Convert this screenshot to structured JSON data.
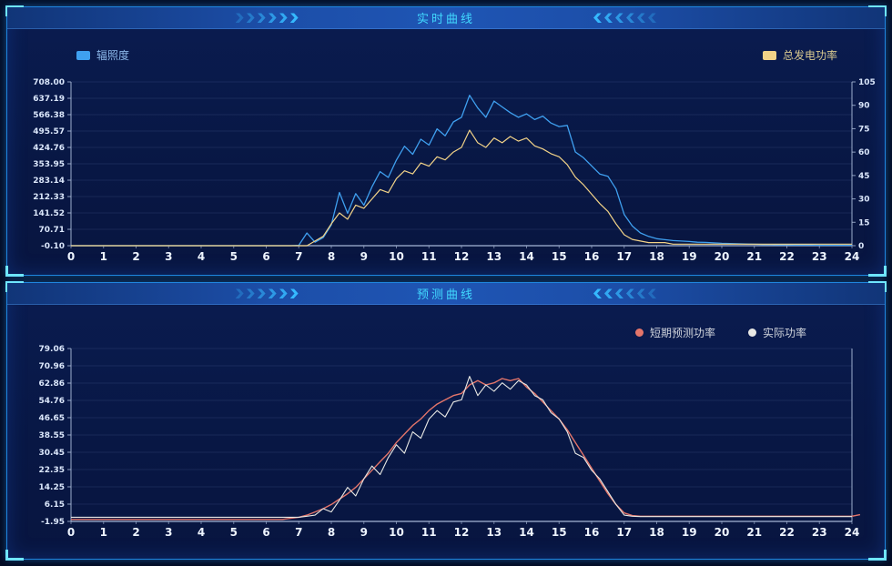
{
  "colors": {
    "background": "#04102c",
    "panel_bg": "#081744",
    "panel_border": "#1f86e0",
    "corner_accent": "#6fe6ff",
    "header_bg": "#1c4ea8",
    "title_text": "#41d9ff",
    "axis_line": "#aebfdd",
    "grid_line": "rgba(170,200,255,0.10)",
    "tick_text": "#dbe7fb",
    "x_tick_text": "#eef5ff",
    "irradiance": "#3fa0f0",
    "total_power": "#f2d388",
    "forecast_power": "#e4756a",
    "actual_power": "#e8e8e4"
  },
  "icons": {
    "header_left_arrows": "chevrons-right",
    "header_right_arrows": "chevrons-left",
    "legend_square": "square-swatch",
    "legend_dot": "circle-swatch"
  },
  "realtime": {
    "title": "实时曲线",
    "legend": [
      {
        "label": "辐照度",
        "color": "#3fa0f0",
        "shape": "square"
      },
      {
        "label": "总发电功率",
        "color": "#f2d388",
        "shape": "square"
      }
    ]
  },
  "forecast": {
    "title": "预测曲线",
    "legend": [
      {
        "label": "短期预测功率",
        "color": "#e4756a",
        "shape": "circle"
      },
      {
        "label": "实际功率",
        "color": "#e8e8e4",
        "shape": "circle"
      }
    ]
  },
  "chart_data": [
    {
      "type": "line",
      "title": "实时曲线",
      "x_start": 0,
      "x_step": 0.25,
      "xlim": [
        0,
        24
      ],
      "x_ticks": [
        "0",
        "1",
        "2",
        "3",
        "4",
        "5",
        "6",
        "7",
        "8",
        "9",
        "10",
        "11",
        "12",
        "13",
        "14",
        "15",
        "16",
        "17",
        "18",
        "19",
        "20",
        "21",
        "22",
        "23",
        "24"
      ],
      "left_ticks": [
        "708.00",
        "637.19",
        "566.38",
        "495.57",
        "424.76",
        "353.95",
        "283.14",
        "212.33",
        "141.52",
        "70.71",
        "-0.10"
      ],
      "left_ylim": [
        -0.1,
        708.0
      ],
      "right_ticks": [
        "105",
        "90",
        "75",
        "60",
        "45",
        "30",
        "15",
        "0"
      ],
      "right_ylim": [
        0,
        105
      ],
      "legend_position": "top-corners",
      "grid": true,
      "series": [
        {
          "id": "irradiance",
          "name": "辐照度",
          "axis": "left",
          "color": "#3fa0f0",
          "width": 1.3,
          "values": [
            0,
            0,
            0,
            0,
            0,
            0,
            0,
            0,
            0,
            0,
            0,
            0,
            0,
            0,
            0,
            0,
            0,
            0,
            0,
            0,
            0,
            0,
            0,
            0,
            0,
            0,
            0,
            0,
            2,
            55,
            15,
            35,
            90,
            230,
            140,
            225,
            175,
            255,
            320,
            295,
            370,
            430,
            395,
            460,
            435,
            505,
            475,
            535,
            555,
            650,
            595,
            555,
            625,
            600,
            575,
            555,
            570,
            545,
            560,
            530,
            515,
            520,
            405,
            380,
            345,
            310,
            300,
            245,
            135,
            85,
            55,
            40,
            30,
            26,
            22,
            20,
            18,
            15,
            14,
            12,
            10,
            9,
            8,
            7,
            6,
            5,
            5,
            4,
            4,
            3,
            3,
            3,
            2,
            2,
            2,
            2,
            2
          ]
        },
        {
          "id": "total-power",
          "name": "总发电功率",
          "axis": "right",
          "color": "#f2d388",
          "width": 1.2,
          "values": [
            0,
            0,
            0,
            0,
            0,
            0,
            0,
            0,
            0,
            0,
            0,
            0,
            0,
            0,
            0,
            0,
            0,
            0,
            0,
            0,
            0,
            0,
            0,
            0,
            0,
            0,
            0,
            0,
            0,
            0,
            3,
            6,
            14,
            21,
            17,
            26,
            24,
            30,
            36,
            34,
            43,
            48,
            46,
            53,
            51,
            57,
            55,
            60,
            63,
            74,
            66,
            63,
            69,
            66,
            70,
            67,
            69,
            64,
            62,
            59,
            57,
            52,
            44,
            39,
            33,
            27,
            22,
            14,
            7,
            4,
            3,
            2,
            2,
            2,
            1,
            1,
            1,
            1,
            1,
            1,
            1,
            1,
            1,
            1,
            1,
            1,
            1,
            1,
            1,
            1,
            1,
            1,
            1,
            1,
            1,
            1,
            1
          ]
        }
      ]
    },
    {
      "type": "line",
      "title": "预测曲线",
      "x_start": 0,
      "x_step": 0.25,
      "xlim": [
        0,
        24
      ],
      "x_ticks": [
        "0",
        "1",
        "2",
        "3",
        "4",
        "5",
        "6",
        "7",
        "8",
        "9",
        "10",
        "11",
        "12",
        "13",
        "14",
        "15",
        "16",
        "17",
        "18",
        "19",
        "20",
        "21",
        "22",
        "23",
        "24"
      ],
      "left_ticks": [
        "79.06",
        "70.96",
        "62.86",
        "54.76",
        "46.65",
        "38.55",
        "30.45",
        "22.35",
        "14.25",
        "6.15",
        "-1.95"
      ],
      "left_ylim": [
        -1.95,
        79.06
      ],
      "legend_position": "top-right",
      "grid": true,
      "series": [
        {
          "id": "forecast-power",
          "name": "短期预测功率",
          "axis": "left",
          "color": "#e4756a",
          "width": 1.4,
          "values": [
            -1,
            -1,
            -1,
            -1,
            -1,
            -1,
            -1,
            -1,
            -1,
            -1,
            -1,
            -1,
            -1,
            -1,
            -1,
            -1,
            -1,
            -1,
            -1,
            -1,
            -1,
            -1,
            -1,
            -1,
            -1,
            -1,
            -1,
            -0.5,
            0,
            1,
            2.5,
            4,
            6,
            8.5,
            11,
            14,
            18,
            22,
            26,
            30,
            35,
            39,
            43,
            46,
            50,
            53,
            55,
            57,
            58,
            62,
            64,
            62,
            63,
            65,
            64,
            65,
            61,
            58,
            54,
            50,
            46,
            41,
            35,
            29,
            23,
            17,
            11,
            6,
            2,
            0.8,
            0.5,
            0.5,
            0.5,
            0.5,
            0.5,
            0.5,
            0.5,
            0.5,
            0.5,
            0.5,
            0.5,
            0.5,
            0.5,
            0.5,
            0.5,
            0.5,
            0.5,
            0.5,
            0.5,
            0.5,
            0.5,
            0.5,
            0.5,
            0.5,
            0.5,
            0.5,
            0.5,
            1.2
          ]
        },
        {
          "id": "actual-power",
          "name": "实际功率",
          "axis": "left",
          "color": "#e8e8e4",
          "width": 1.1,
          "values": [
            0,
            0,
            0,
            0,
            0,
            0,
            0,
            0,
            0,
            0,
            0,
            0,
            0,
            0,
            0,
            0,
            0,
            0,
            0,
            0,
            0,
            0,
            0,
            0,
            0,
            0,
            0,
            0,
            0,
            0.5,
            1,
            4,
            2.5,
            8,
            14,
            10,
            18,
            24,
            20,
            28,
            34,
            30,
            40,
            37,
            46,
            50,
            47,
            54,
            55,
            66,
            57,
            62,
            59,
            63,
            60,
            64,
            62,
            57,
            55,
            49,
            46,
            40,
            30,
            28,
            22,
            18,
            12,
            6,
            1,
            0.5,
            0.3,
            0.3,
            0.3,
            0.3,
            0.3,
            0.3,
            0.3,
            0.3,
            0.3,
            0.3,
            0.3,
            0.3,
            0.3,
            0.3,
            0.3,
            0.3,
            0.3,
            0.3,
            0.3,
            0.3,
            0.3,
            0.3,
            0.3,
            0.3,
            0.3,
            0.3,
            0.3
          ]
        }
      ]
    }
  ]
}
